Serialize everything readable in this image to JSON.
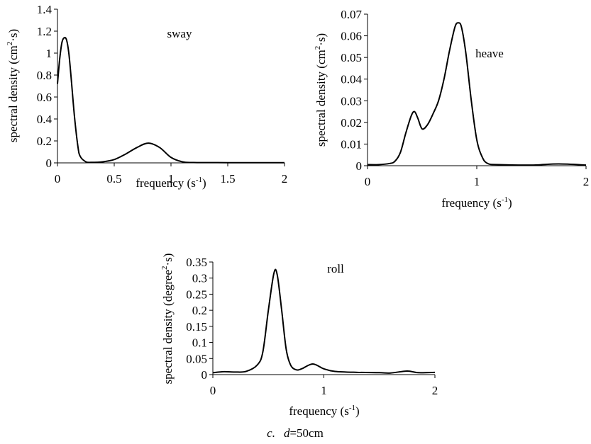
{
  "chart_data": [
    {
      "type": "line",
      "annotation": "sway",
      "xlabel": [
        "frequency (s",
        "-1",
        ")"
      ],
      "ylabel": [
        "spectral density (cm",
        "2",
        "·s)"
      ],
      "x": [
        0,
        0.02,
        0.04,
        0.06,
        0.08,
        0.1,
        0.12,
        0.15,
        0.18,
        0.2,
        0.25,
        0.3,
        0.4,
        0.5,
        0.6,
        0.7,
        0.8,
        0.9,
        1.0,
        1.1,
        1.2,
        1.5,
        2.0
      ],
      "series": [
        {
          "color": "#000000",
          "values": [
            0.72,
            0.95,
            1.1,
            1.14,
            1.12,
            1.0,
            0.78,
            0.42,
            0.15,
            0.06,
            0.01,
            0.005,
            0.01,
            0.03,
            0.08,
            0.14,
            0.18,
            0.14,
            0.05,
            0.01,
            0.003,
            0.002,
            0.002
          ]
        }
      ],
      "xlim": [
        0,
        2
      ],
      "ylim": [
        0,
        1.4
      ],
      "xticks": [
        0,
        0.5,
        1,
        1.5,
        2
      ],
      "yticks": [
        0,
        0.2,
        0.4,
        0.6,
        0.8,
        1,
        1.2,
        1.4
      ]
    },
    {
      "type": "line",
      "annotation": "heave",
      "xlabel": [
        "frequency (s",
        "-1",
        ")"
      ],
      "ylabel": [
        "spectral density (cm",
        "2",
        "·s)"
      ],
      "x": [
        0,
        0.1,
        0.2,
        0.25,
        0.3,
        0.35,
        0.4,
        0.43,
        0.46,
        0.5,
        0.55,
        0.6,
        0.65,
        0.7,
        0.75,
        0.8,
        0.83,
        0.86,
        0.9,
        0.95,
        1.0,
        1.05,
        1.1,
        1.2,
        1.5,
        1.75,
        2.0
      ],
      "series": [
        {
          "color": "#000000",
          "values": [
            0.0005,
            0.0005,
            0.001,
            0.002,
            0.006,
            0.015,
            0.023,
            0.025,
            0.022,
            0.017,
            0.019,
            0.024,
            0.03,
            0.04,
            0.053,
            0.064,
            0.066,
            0.064,
            0.052,
            0.03,
            0.012,
            0.004,
            0.001,
            0.0005,
            0.0003,
            0.0008,
            0.0003
          ]
        }
      ],
      "xlim": [
        0,
        2
      ],
      "ylim": [
        0,
        0.07
      ],
      "xticks": [
        0,
        1,
        2
      ],
      "yticks": [
        0,
        0.01,
        0.02,
        0.03,
        0.04,
        0.05,
        0.06,
        0.07
      ]
    },
    {
      "type": "line",
      "annotation": "roll",
      "xlabel": [
        "frequency (s",
        "-1",
        ")"
      ],
      "ylabel": [
        "spectral density (degree",
        "2",
        "·s)"
      ],
      "x": [
        0,
        0.1,
        0.2,
        0.3,
        0.4,
        0.45,
        0.5,
        0.55,
        0.58,
        0.62,
        0.66,
        0.7,
        0.75,
        0.8,
        0.9,
        1.0,
        1.1,
        1.3,
        1.5,
        1.6,
        1.75,
        1.85,
        2.0
      ],
      "series": [
        {
          "color": "#000000",
          "values": [
            0.006,
            0.009,
            0.008,
            0.01,
            0.03,
            0.07,
            0.2,
            0.315,
            0.31,
            0.2,
            0.08,
            0.03,
            0.015,
            0.018,
            0.033,
            0.018,
            0.01,
            0.007,
            0.006,
            0.005,
            0.011,
            0.006,
            0.007
          ]
        }
      ],
      "xlim": [
        0,
        2
      ],
      "ylim": [
        0,
        0.35
      ],
      "xticks": [
        0,
        1,
        2
      ],
      "yticks": [
        0,
        0.05,
        0.1,
        0.15,
        0.2,
        0.25,
        0.3,
        0.35
      ]
    }
  ],
  "caption": [
    "c.",
    "d",
    "=50cm"
  ]
}
